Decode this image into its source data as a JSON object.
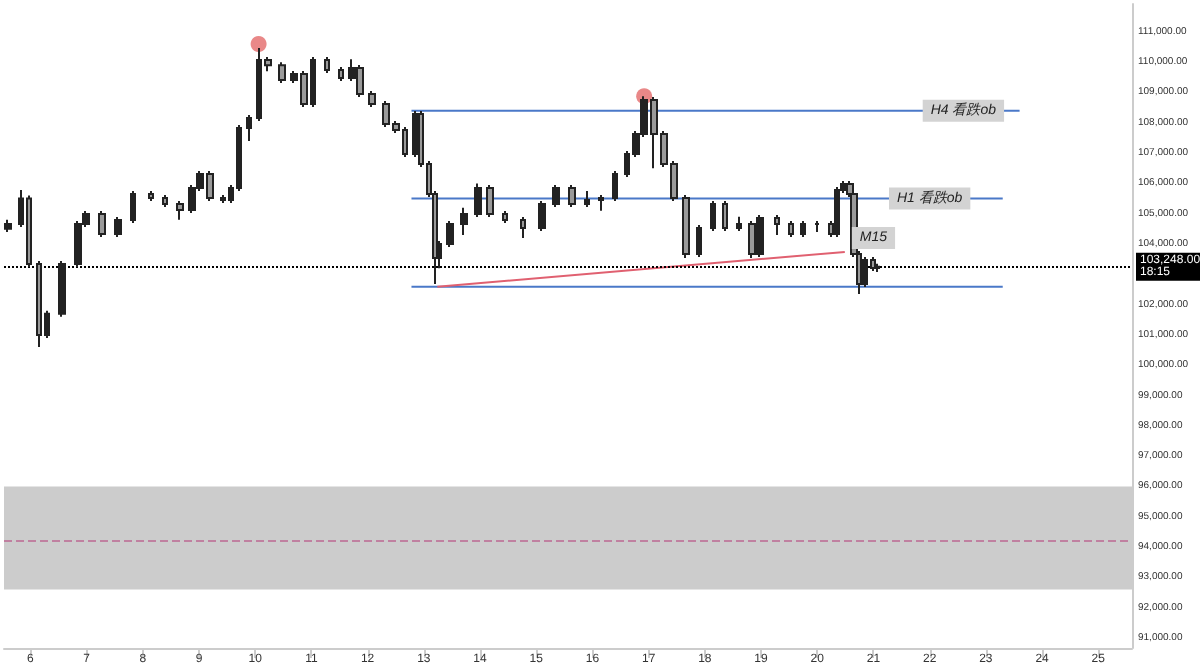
{
  "chart_data": {
    "type": "candlestick",
    "xlim": [
      5.53,
      25.6
    ],
    "xticks": [
      6,
      7,
      8,
      9,
      10,
      11,
      12,
      13,
      14,
      15,
      16,
      17,
      18,
      19,
      20,
      21,
      22,
      23,
      24,
      25
    ],
    "ylim": [
      90670,
      111920
    ],
    "yticks": [
      {
        "value": 91000,
        "label": "91,000.00"
      },
      {
        "value": 92000,
        "label": "92,000.00"
      },
      {
        "value": 93000,
        "label": "93,000.00"
      },
      {
        "value": 94000,
        "label": "94,000.00"
      },
      {
        "value": 95000,
        "label": "95,000.00"
      },
      {
        "value": 96000,
        "label": "96,000.00"
      },
      {
        "value": 97000,
        "label": "97,000.00"
      },
      {
        "value": 98000,
        "label": "98,000.00"
      },
      {
        "value": 99000,
        "label": "99,000.00"
      },
      {
        "value": 100000,
        "label": "100,000.00"
      },
      {
        "value": 101000,
        "label": "101,000.00"
      },
      {
        "value": 102000,
        "label": "102,000.00"
      },
      {
        "value": 104000,
        "label": "104,000.00"
      },
      {
        "value": 105000,
        "label": "105,000.00"
      },
      {
        "value": 106000,
        "label": "106,000.00"
      },
      {
        "value": 107000,
        "label": "107,000.00"
      },
      {
        "value": 108000,
        "label": "108,000.00"
      },
      {
        "value": 109000,
        "label": "109,000.00"
      },
      {
        "value": 110000,
        "label": "110,000.00"
      },
      {
        "value": 111000,
        "label": "111,000.00"
      }
    ],
    "grid": false,
    "series": [
      {
        "color": "#222222",
        "x": [
          5.6,
          5.84,
          5.98,
          6.16,
          6.3,
          6.57,
          6.85,
          6.99,
          7.27,
          7.55,
          7.83,
          8.14,
          8.39,
          8.67,
          8.87,
          9.01,
          9.19,
          9.43,
          9.57,
          9.71,
          9.89,
          10.06,
          10.23,
          10.48,
          10.69,
          10.86,
          11.03,
          11.28,
          11.52,
          11.73,
          11.87,
          12.08,
          12.32,
          12.5,
          12.67,
          12.85,
          12.95,
          13.09,
          13.2,
          13.27,
          13.47,
          13.72,
          13.96,
          14.17,
          14.45,
          14.76,
          15.11,
          15.36,
          15.63,
          15.91,
          16.16,
          16.4,
          16.61,
          16.78,
          16.92,
          17.1,
          17.27,
          17.45,
          17.66,
          17.9,
          18.14,
          18.35,
          18.6,
          18.84,
          18.98,
          19.29,
          19.54,
          19.75,
          20.0,
          20.24,
          20.35,
          20.46,
          20.58,
          20.65,
          20.75,
          20.85,
          20.99,
          21.07
        ],
        "ohlc": [
          [
            104500,
            104800,
            104400,
            104660
          ],
          [
            104660,
            105780,
            104560,
            105500
          ],
          [
            105500,
            105600,
            103240,
            103340
          ],
          [
            103340,
            103440,
            100600,
            101000
          ],
          [
            101000,
            101800,
            100900,
            101700
          ],
          [
            101700,
            103440,
            101600,
            103340
          ],
          [
            103340,
            104760,
            103240,
            104660
          ],
          [
            104660,
            105090,
            104560,
            104990
          ],
          [
            104990,
            105090,
            104230,
            104330
          ],
          [
            104330,
            104890,
            104230,
            104790
          ],
          [
            104790,
            105750,
            104690,
            105650
          ],
          [
            105650,
            105750,
            105420,
            105520
          ],
          [
            105520,
            105620,
            105220,
            105320
          ],
          [
            105320,
            105420,
            104800,
            105120
          ],
          [
            105120,
            105950,
            105020,
            105850
          ],
          [
            105850,
            106410,
            105750,
            106310
          ],
          [
            106310,
            106410,
            105420,
            105520
          ],
          [
            105520,
            105620,
            105350,
            105450
          ],
          [
            105450,
            105950,
            105350,
            105850
          ],
          [
            105850,
            107930,
            105750,
            107830
          ],
          [
            107830,
            108260,
            107400,
            108160
          ],
          [
            108160,
            110470,
            108060,
            110070
          ],
          [
            110070,
            110170,
            109700,
            109900
          ],
          [
            109900,
            110000,
            109310,
            109410
          ],
          [
            109410,
            109710,
            109310,
            109610
          ],
          [
            109610,
            109710,
            108520,
            108620
          ],
          [
            108620,
            110170,
            108520,
            110070
          ],
          [
            110070,
            110170,
            109640,
            109740
          ],
          [
            109740,
            109840,
            109380,
            109480
          ],
          [
            109480,
            110100,
            109380,
            109810
          ],
          [
            109810,
            109910,
            108850,
            108950
          ],
          [
            108950,
            109050,
            108520,
            108620
          ],
          [
            108620,
            108720,
            107860,
            107960
          ],
          [
            107960,
            108060,
            107660,
            107760
          ],
          [
            107760,
            107860,
            106870,
            106970
          ],
          [
            106970,
            108390,
            106870,
            108290
          ],
          [
            108290,
            108390,
            106540,
            106640
          ],
          [
            106640,
            106740,
            105550,
            105650
          ],
          [
            105650,
            105750,
            102680,
            103540
          ],
          [
            103540,
            104100,
            103200,
            104000
          ],
          [
            104000,
            104760,
            103900,
            104660
          ],
          [
            104660,
            105200,
            104300,
            104990
          ],
          [
            104990,
            106000,
            104890,
            105850
          ],
          [
            105850,
            105950,
            104890,
            104990
          ],
          [
            104990,
            105090,
            104690,
            104790
          ],
          [
            104790,
            104890,
            104200,
            104530
          ],
          [
            104530,
            105420,
            104430,
            105320
          ],
          [
            105320,
            105950,
            105220,
            105850
          ],
          [
            105850,
            105950,
            105220,
            105320
          ],
          [
            105320,
            105750,
            105220,
            105450
          ],
          [
            105450,
            105620,
            105100,
            105520
          ],
          [
            105520,
            106410,
            105420,
            106310
          ],
          [
            106310,
            107070,
            106210,
            106970
          ],
          [
            106970,
            107730,
            106870,
            107630
          ],
          [
            107630,
            108880,
            107530,
            108750
          ],
          [
            108750,
            108850,
            106500,
            107630
          ],
          [
            107630,
            107730,
            106540,
            106640
          ],
          [
            106640,
            106740,
            105420,
            105520
          ],
          [
            105520,
            105620,
            103540,
            103670
          ],
          [
            103670,
            104630,
            103570,
            104530
          ],
          [
            104530,
            105420,
            104430,
            105320
          ],
          [
            105320,
            105420,
            104430,
            104530
          ],
          [
            104530,
            104900,
            104430,
            104660
          ],
          [
            104660,
            104760,
            103540,
            103670
          ],
          [
            103670,
            104960,
            103570,
            104860
          ],
          [
            104860,
            104960,
            104300,
            104660
          ],
          [
            104660,
            104760,
            104230,
            104330
          ],
          [
            104330,
            104760,
            104230,
            104660
          ],
          [
            104660,
            104760,
            104400,
            104660
          ],
          [
            104660,
            104760,
            104230,
            104330
          ],
          [
            104330,
            105880,
            104230,
            105780
          ],
          [
            105780,
            106080,
            105680,
            105980
          ],
          [
            105980,
            106080,
            105550,
            105650
          ],
          [
            105650,
            105750,
            103570,
            103670
          ],
          [
            103670,
            103770,
            102350,
            102680
          ],
          [
            102680,
            103570,
            102580,
            103470
          ],
          [
            103470,
            103570,
            103110,
            103210
          ],
          [
            103210,
            103350,
            103080,
            103248
          ]
        ]
      },
      {
        "type": "line",
        "color": "#4a78c8",
        "x": [
          12.78,
          23.6
        ],
        "values": [
          108400,
          108400
        ]
      },
      {
        "type": "line",
        "color": "#4a78c8",
        "x": [
          12.78,
          23.3
        ],
        "values": [
          105500,
          105500
        ]
      },
      {
        "type": "line",
        "color": "#4a78c8",
        "x": [
          12.78,
          23.3
        ],
        "values": [
          102590,
          102590
        ]
      },
      {
        "type": "line",
        "color": "#e06070",
        "x": [
          13.24,
          20.49
        ],
        "values": [
          102590,
          103740
        ]
      },
      {
        "type": "scatter",
        "color": "#e57373",
        "x": [
          10.06,
          16.92
        ],
        "values": [
          110600,
          108880
        ]
      }
    ],
    "bands": [
      {
        "axis": "y",
        "from": 92600,
        "to": 96000,
        "color": "#cccccc"
      }
    ],
    "ref_lines": [
      {
        "axis": "y",
        "value": 94200,
        "color": "#c080a0",
        "line_style": "dashed"
      },
      {
        "axis": "y",
        "value": 103248,
        "label": "103,248.00\n18:15",
        "color": "#000000",
        "line_style": "dotted"
      }
    ],
    "annotations": [
      {
        "text": "H4 看跌ob",
        "x": 22.6,
        "y": 108400
      },
      {
        "text": "H1 看跌ob",
        "x": 22.0,
        "y": 105500
      },
      {
        "text": "M15",
        "x": 21.0,
        "y": 104200
      }
    ]
  }
}
